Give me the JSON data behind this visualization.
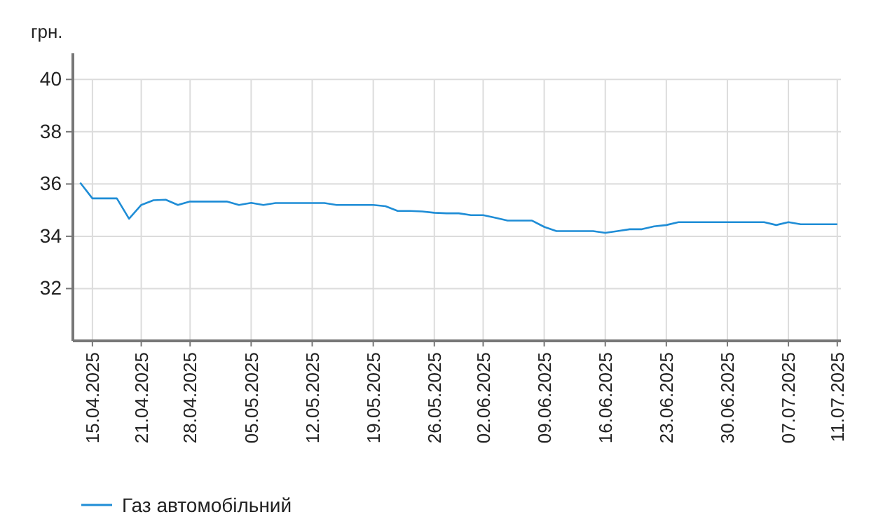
{
  "chart_data": {
    "type": "line",
    "ylabel": "грн.",
    "categories": [
      null,
      "15.04.2025",
      null,
      null,
      null,
      "21.04.2025",
      null,
      null,
      null,
      "28.04.2025",
      null,
      null,
      null,
      null,
      "05.05.2025",
      null,
      null,
      null,
      null,
      "12.05.2025",
      null,
      null,
      null,
      null,
      "19.05.2025",
      null,
      null,
      null,
      null,
      "26.05.2025",
      null,
      null,
      null,
      "02.06.2025",
      null,
      null,
      null,
      null,
      "09.06.2025",
      null,
      null,
      null,
      null,
      "16.06.2025",
      null,
      null,
      null,
      null,
      "23.06.2025",
      null,
      null,
      null,
      null,
      "30.06.2025",
      null,
      null,
      null,
      null,
      "07.07.2025",
      null,
      null,
      null,
      "11.07.2025"
    ],
    "series": [
      {
        "name": "Газ автомобільний",
        "color": "#1f8dd6",
        "values": [
          36.05,
          35.45,
          35.45,
          35.45,
          34.67,
          35.2,
          35.38,
          35.4,
          35.2,
          35.33,
          35.33,
          35.33,
          35.33,
          35.2,
          35.28,
          35.2,
          35.27,
          35.27,
          35.27,
          35.27,
          35.27,
          35.2,
          35.2,
          35.2,
          35.2,
          35.15,
          34.97,
          34.97,
          34.95,
          34.9,
          34.88,
          34.88,
          34.81,
          34.81,
          34.71,
          34.6,
          34.6,
          34.6,
          34.36,
          34.2,
          34.2,
          34.2,
          34.2,
          34.13,
          34.2,
          34.27,
          34.27,
          34.38,
          34.43,
          34.54,
          34.54,
          34.54,
          34.54,
          34.54,
          34.54,
          34.54,
          34.54,
          34.43,
          34.54,
          34.46,
          34.46,
          34.46,
          34.46
        ]
      }
    ],
    "ylim": [
      30,
      41
    ],
    "yticks": [
      32,
      34,
      36,
      38,
      40
    ],
    "grid": true,
    "legend": "bottom left"
  }
}
